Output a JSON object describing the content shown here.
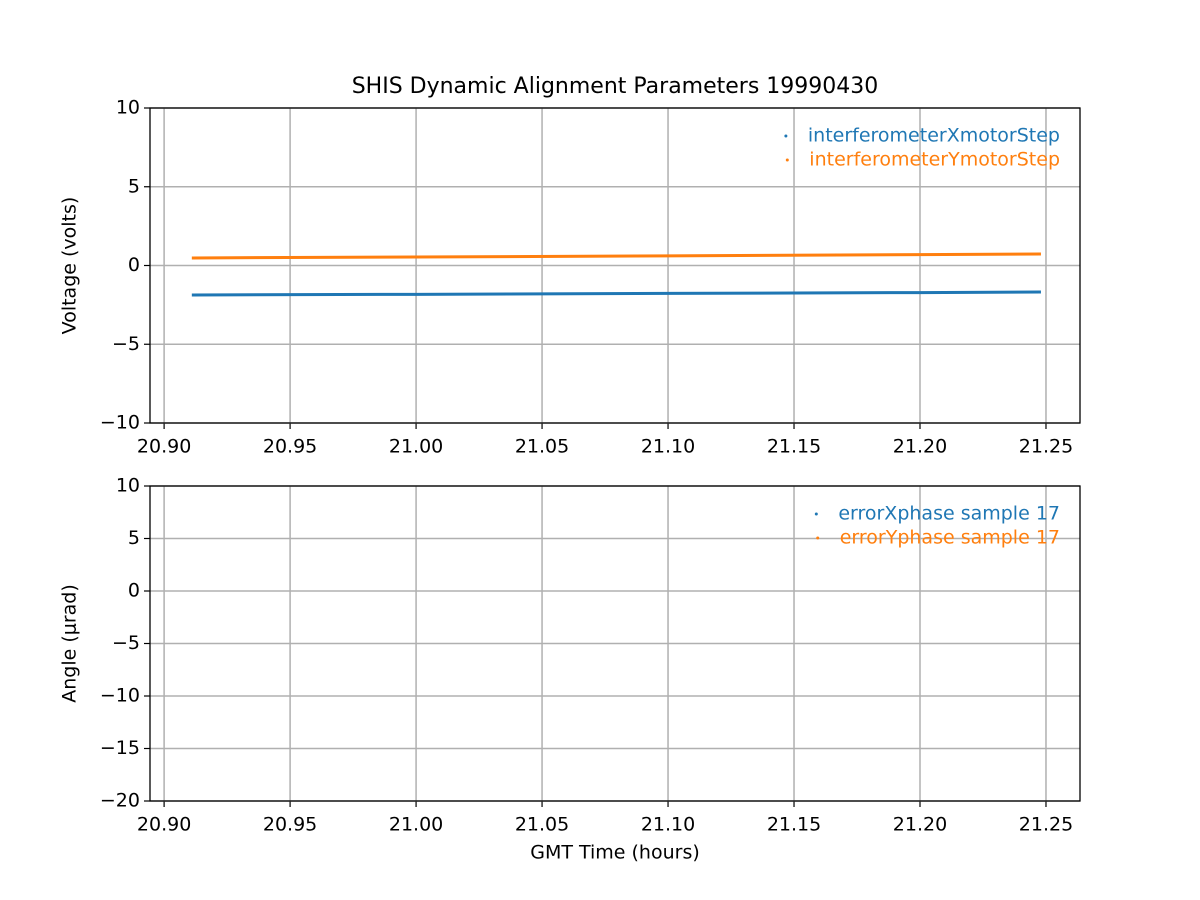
{
  "chart_data": [
    {
      "type": "line",
      "title": "SHIS Dynamic Alignment Parameters 19990430",
      "ylabel": "Voltage (volts)",
      "x": [
        20.911,
        21.0,
        21.1,
        21.2,
        21.248
      ],
      "series": [
        {
          "name": "interferometerXmotorStep",
          "color": "#1f77b4",
          "values": [
            -1.87,
            -1.83,
            -1.77,
            -1.72,
            -1.68
          ]
        },
        {
          "name": "interferometerYmotorStep",
          "color": "#ff7f0e",
          "values": [
            0.48,
            0.54,
            0.61,
            0.69,
            0.73
          ]
        }
      ],
      "xlim": [
        20.8944,
        21.2635
      ],
      "xticks": [
        {
          "value": 20.9,
          "label": "20.90"
        },
        {
          "value": 20.95,
          "label": "20.95"
        },
        {
          "value": 21.0,
          "label": "21.00"
        },
        {
          "value": 21.05,
          "label": "21.05"
        },
        {
          "value": 21.1,
          "label": "21.10"
        },
        {
          "value": 21.15,
          "label": "21.15"
        },
        {
          "value": 21.2,
          "label": "21.20"
        },
        {
          "value": 21.25,
          "label": "21.25"
        }
      ],
      "ylim": [
        -10,
        10
      ],
      "yticks": [
        {
          "value": -10,
          "label": "−10"
        },
        {
          "value": -5,
          "label": "−5"
        },
        0,
        5,
        10
      ],
      "grid": true,
      "legend": "upper-right"
    },
    {
      "type": "line",
      "xlabel": "GMT Time (hours)",
      "ylabel": "Angle (μrad)",
      "x": [],
      "series": [
        {
          "name": "errorXphase sample 17",
          "color": "#1f77b4",
          "values": []
        },
        {
          "name": "errorYphase sample 17",
          "color": "#ff7f0e",
          "values": []
        }
      ],
      "xlim": [
        20.8944,
        21.2635
      ],
      "xticks": [
        {
          "value": 20.9,
          "label": "20.90"
        },
        {
          "value": 20.95,
          "label": "20.95"
        },
        {
          "value": 21.0,
          "label": "21.00"
        },
        {
          "value": 21.05,
          "label": "21.05"
        },
        {
          "value": 21.1,
          "label": "21.10"
        },
        {
          "value": 21.15,
          "label": "21.15"
        },
        {
          "value": 21.2,
          "label": "21.20"
        },
        {
          "value": 21.25,
          "label": "21.25"
        }
      ],
      "ylim": [
        -20,
        10
      ],
      "yticks": [
        {
          "value": -20,
          "label": "−20"
        },
        {
          "value": -15,
          "label": "−15"
        },
        {
          "value": -10,
          "label": "−10"
        },
        {
          "value": -5,
          "label": "−5"
        },
        0,
        5,
        10
      ],
      "grid": true,
      "legend": "upper-right"
    }
  ]
}
